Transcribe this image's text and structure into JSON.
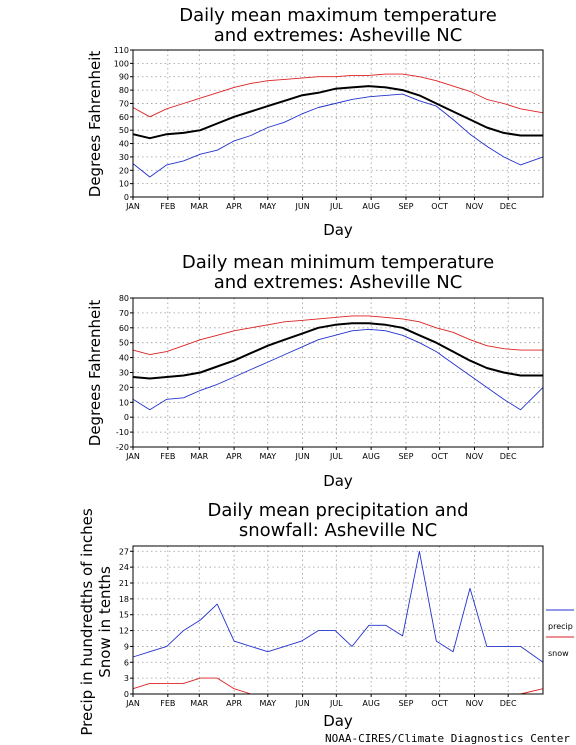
{
  "credit": "NOAA-CIRES/Climate Diagnostics Center",
  "chart_data": [
    {
      "type": "line",
      "title_lines": [
        "Daily mean maximum temperature",
        "and extremes: Asheville NC"
      ],
      "xlabel": "Day",
      "ylabel": "Degrees Fahrenheit",
      "ylim": [
        0,
        110
      ],
      "yticks": [
        0,
        10,
        20,
        30,
        40,
        50,
        60,
        70,
        80,
        90,
        100,
        110
      ],
      "categories": [
        "JAN",
        "FEB",
        "MAR",
        "APR",
        "MAY",
        "JUN",
        "JUL",
        "AUG",
        "SEP",
        "OCT",
        "NOV",
        "DEC"
      ],
      "x": [
        0,
        15,
        30,
        45,
        60,
        75,
        90,
        105,
        120,
        135,
        150,
        165,
        180,
        195,
        210,
        225,
        240,
        255,
        270,
        285,
        300,
        315,
        330,
        345,
        365
      ],
      "series": [
        {
          "color": "#000000",
          "values": [
            47,
            44,
            47,
            48,
            50,
            55,
            60,
            64,
            68,
            72,
            76,
            78,
            81,
            82,
            83,
            82,
            80,
            76,
            70,
            64,
            58,
            52,
            48,
            46,
            46
          ]
        },
        {
          "color": "#dd2222",
          "values": [
            67,
            60,
            66,
            70,
            74,
            78,
            82,
            85,
            87,
            88,
            89,
            90,
            90,
            91,
            91,
            92,
            92,
            90,
            87,
            83,
            79,
            73,
            70,
            66,
            63
          ]
        },
        {
          "color": "#2233cc",
          "values": [
            25,
            15,
            24,
            27,
            32,
            35,
            42,
            46,
            52,
            56,
            62,
            67,
            70,
            73,
            75,
            76,
            77,
            72,
            68,
            58,
            47,
            38,
            30,
            24,
            30
          ]
        }
      ],
      "grid": true
    },
    {
      "type": "line",
      "title_lines": [
        "Daily mean minimum temperature",
        "and extremes: Asheville NC"
      ],
      "xlabel": "Day",
      "ylabel": "Degrees Fahrenheit",
      "ylim": [
        -20,
        80
      ],
      "yticks": [
        -20,
        -10,
        0,
        10,
        20,
        30,
        40,
        50,
        60,
        70,
        80
      ],
      "categories": [
        "JAN",
        "FEB",
        "MAR",
        "APR",
        "MAY",
        "JUN",
        "JUL",
        "AUG",
        "SEP",
        "OCT",
        "NOV",
        "DEC"
      ],
      "x": [
        0,
        15,
        30,
        45,
        60,
        75,
        90,
        105,
        120,
        135,
        150,
        165,
        180,
        195,
        210,
        225,
        240,
        255,
        270,
        285,
        300,
        315,
        330,
        345,
        365
      ],
      "series": [
        {
          "color": "#000000",
          "values": [
            27,
            26,
            27,
            28,
            30,
            34,
            38,
            43,
            48,
            52,
            56,
            60,
            62,
            63,
            63,
            62,
            60,
            55,
            50,
            44,
            38,
            33,
            30,
            28,
            28
          ]
        },
        {
          "color": "#dd2222",
          "values": [
            45,
            42,
            44,
            48,
            52,
            55,
            58,
            60,
            62,
            64,
            65,
            66,
            67,
            68,
            68,
            67,
            66,
            64,
            60,
            57,
            52,
            48,
            46,
            45,
            45
          ]
        },
        {
          "color": "#2233cc",
          "values": [
            12,
            5,
            12,
            13,
            18,
            22,
            27,
            32,
            37,
            42,
            47,
            52,
            55,
            58,
            59,
            58,
            55,
            50,
            44,
            36,
            28,
            20,
            12,
            5,
            20
          ]
        }
      ],
      "grid": true
    },
    {
      "type": "line",
      "title_lines": [
        "Daily mean precipitation and",
        "snowfall: Asheville NC"
      ],
      "xlabel": "Day",
      "ylabel_lines": [
        "Precip in hundredths of inches",
        "Snow in tenths"
      ],
      "ylim": [
        0,
        28
      ],
      "yticks": [
        0,
        3,
        6,
        9,
        12,
        15,
        18,
        21,
        24,
        27
      ],
      "categories": [
        "JAN",
        "FEB",
        "MAR",
        "APR",
        "MAY",
        "JUN",
        "JUL",
        "AUG",
        "SEP",
        "OCT",
        "NOV",
        "DEC"
      ],
      "x": [
        0,
        15,
        30,
        45,
        60,
        75,
        90,
        105,
        120,
        135,
        150,
        165,
        180,
        195,
        210,
        225,
        240,
        255,
        270,
        285,
        300,
        315,
        330,
        345,
        365
      ],
      "series": [
        {
          "name": "precip",
          "color": "#2233cc",
          "values": [
            7,
            8,
            9,
            12,
            14,
            17,
            10,
            9,
            8,
            9,
            10,
            12,
            12,
            9,
            13,
            13,
            11,
            27,
            10,
            8,
            20,
            9,
            9,
            9,
            6
          ]
        },
        {
          "name": "snow",
          "color": "#dd2222",
          "values": [
            1,
            2,
            2,
            2,
            3,
            3,
            1,
            0,
            0,
            0,
            0,
            0,
            0,
            0,
            0,
            0,
            0,
            0,
            0,
            0,
            0,
            0,
            0,
            0,
            1
          ]
        }
      ],
      "legend": "right",
      "grid": true
    }
  ]
}
